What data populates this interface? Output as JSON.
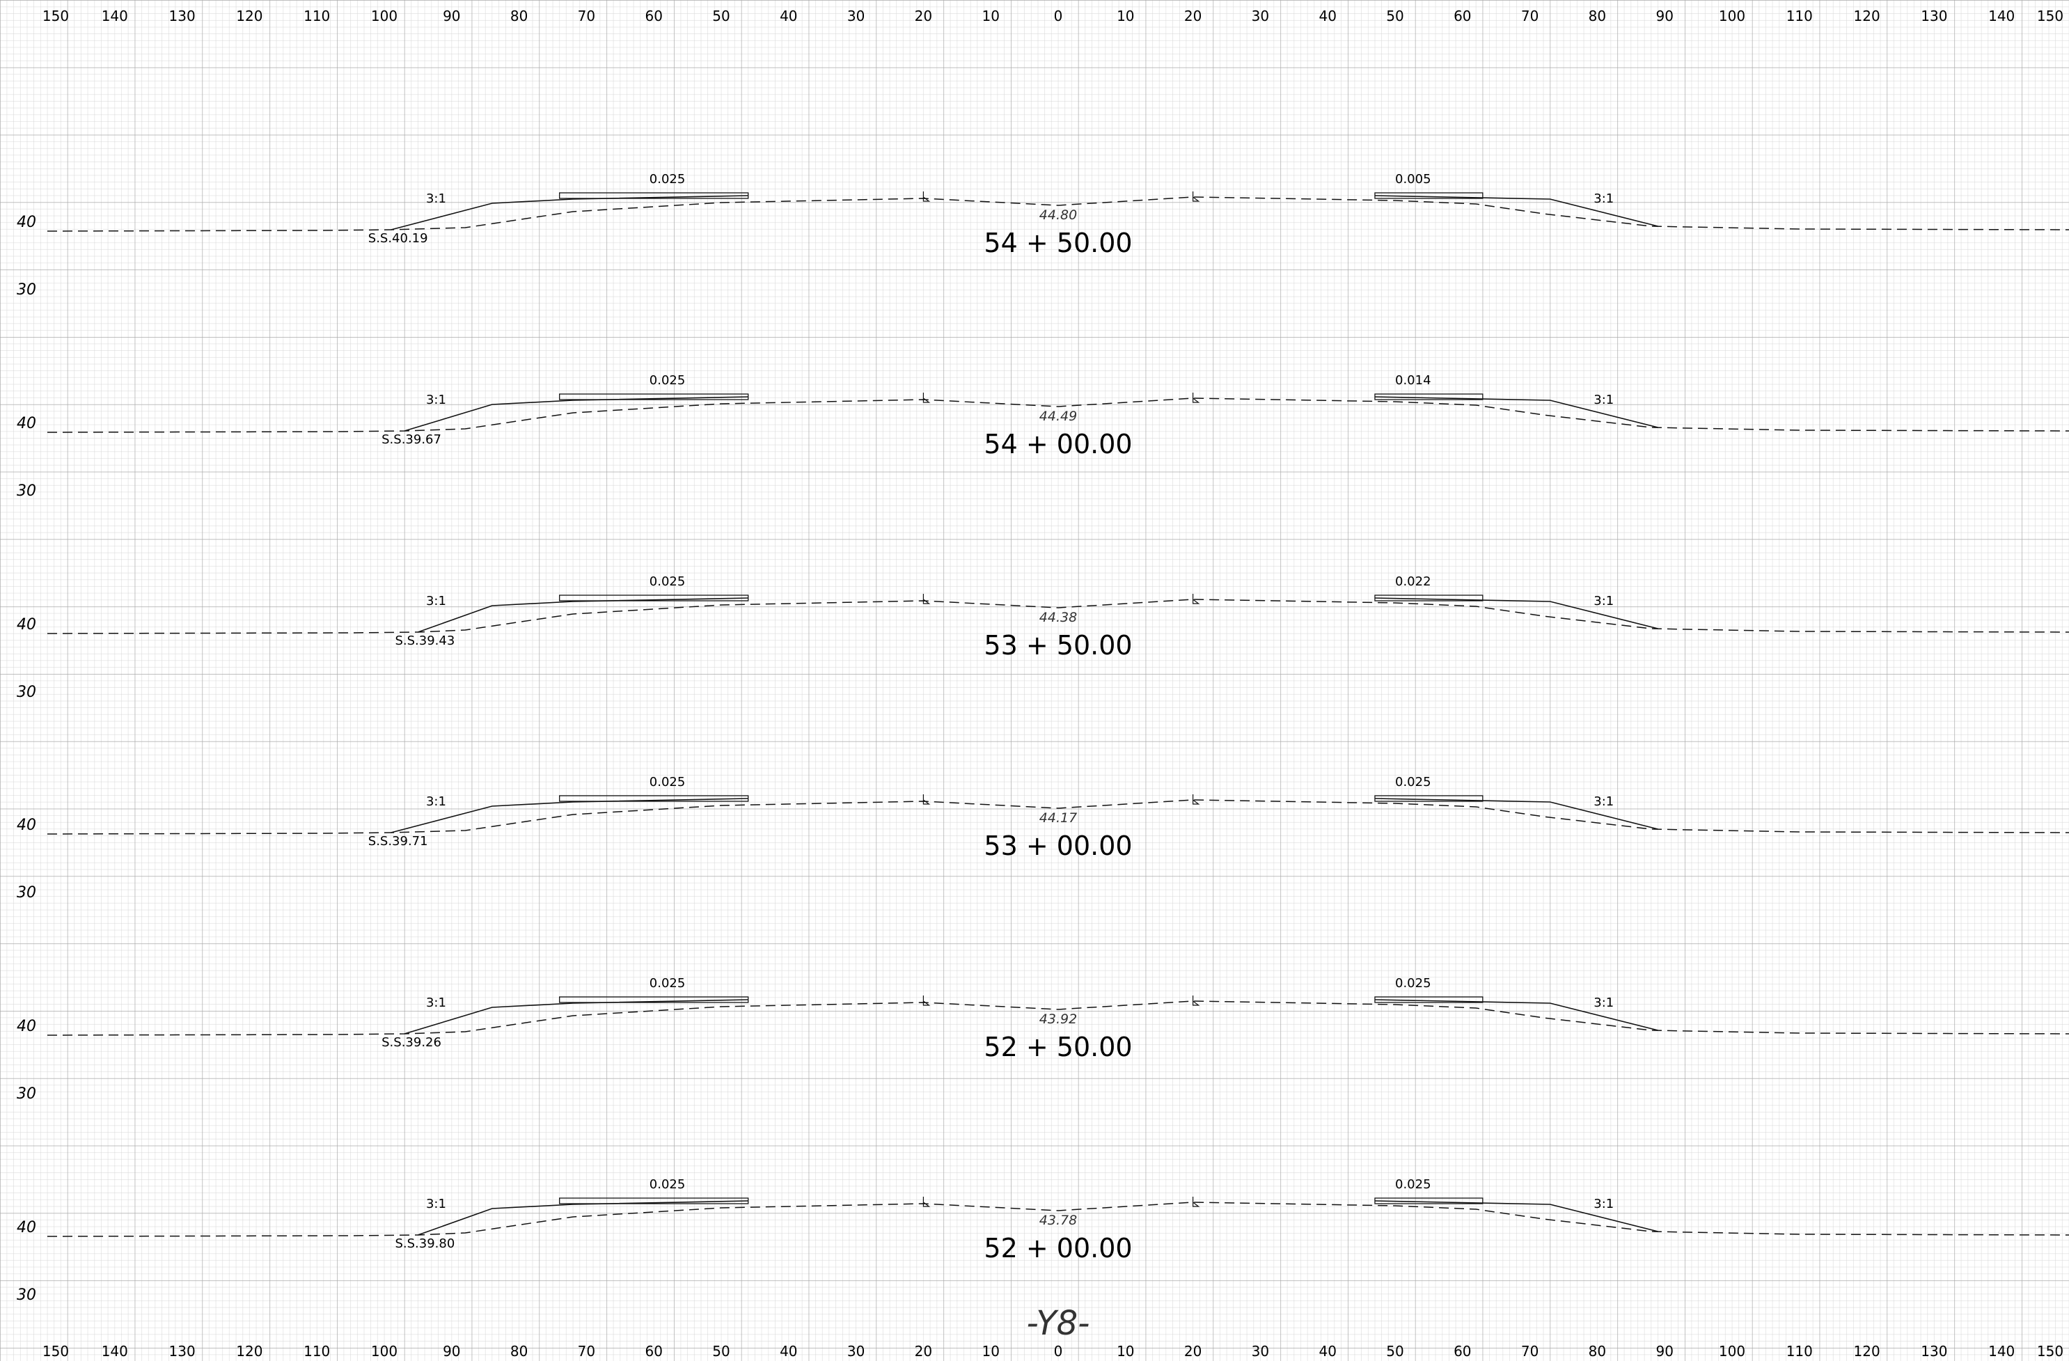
{
  "sheet_title": "-Y8-",
  "x_axis_ticks": [
    "150",
    "140",
    "130",
    "120",
    "110",
    "100",
    "90",
    "80",
    "70",
    "60",
    "50",
    "40",
    "30",
    "20",
    "10",
    "0",
    "10",
    "20",
    "30",
    "40",
    "50",
    "60",
    "70",
    "80",
    "90",
    "100",
    "110",
    "120",
    "130",
    "140",
    "150"
  ],
  "colors": {
    "grid_minor": "#d4d4d4",
    "grid_major": "#aaaaaa",
    "ink": "#111111"
  },
  "sections": [
    {
      "station": "54 + 50.00",
      "centerline_elev": "44.80",
      "left_slope_stake": "S.S.40.19",
      "left_slope": "3:1",
      "right_slope": "3:1",
      "left_cross_slope": "0.025",
      "right_cross_slope": "0.005",
      "elev_label_upper": "40",
      "elev_label_lower": "30"
    },
    {
      "station": "54 + 00.00",
      "centerline_elev": "44.49",
      "left_slope_stake": "S.S.39.67",
      "left_slope": "3:1",
      "right_slope": "3:1",
      "left_cross_slope": "0.025",
      "right_cross_slope": "0.014",
      "elev_label_upper": "40",
      "elev_label_lower": "30"
    },
    {
      "station": "53 + 50.00",
      "centerline_elev": "44.38",
      "left_slope_stake": "S.S.39.43",
      "left_slope": "3:1",
      "right_slope": "3:1",
      "left_cross_slope": "0.025",
      "right_cross_slope": "0.022",
      "elev_label_upper": "40",
      "elev_label_lower": "30"
    },
    {
      "station": "53 + 00.00",
      "centerline_elev": "44.17",
      "left_slope_stake": "S.S.39.71",
      "left_slope": "3:1",
      "right_slope": "3:1",
      "left_cross_slope": "0.025",
      "right_cross_slope": "0.025",
      "elev_label_upper": "40",
      "elev_label_lower": "30"
    },
    {
      "station": "52 + 50.00",
      "centerline_elev": "43.92",
      "left_slope_stake": "S.S.39.26",
      "left_slope": "3:1",
      "right_slope": "3:1",
      "left_cross_slope": "0.025",
      "right_cross_slope": "0.025",
      "elev_label_upper": "40",
      "elev_label_lower": "30"
    },
    {
      "station": "52 + 00.00",
      "centerline_elev": "43.78",
      "left_slope_stake": "S.S.39.80",
      "left_slope": "3:1",
      "right_slope": "3:1",
      "left_cross_slope": "0.025",
      "right_cross_slope": "0.025",
      "elev_label_upper": "40",
      "elev_label_lower": "30"
    }
  ]
}
